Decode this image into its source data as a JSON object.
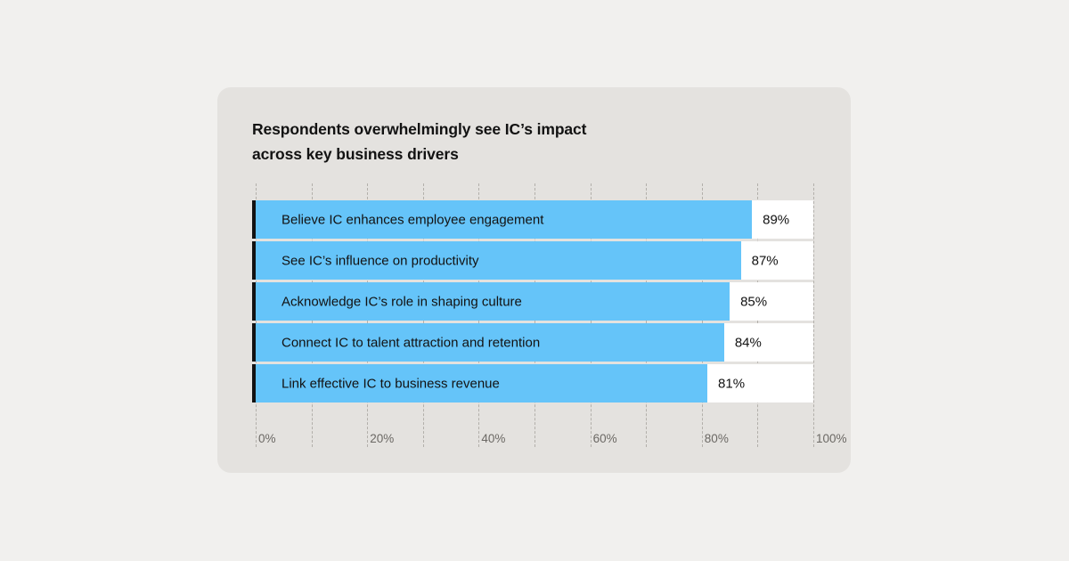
{
  "page": {
    "background_color": "#f1f0ee"
  },
  "card": {
    "background_color": "#e4e2df"
  },
  "title": {
    "line1": "Respondents overwhelmingly see IC’s impact",
    "line2": "across key business drivers"
  },
  "chart_data": {
    "type": "bar",
    "orientation": "horizontal",
    "title": "Respondents overwhelmingly see IC’s impact across key business drivers",
    "categories": [
      "Believe IC enhances employee engagement",
      "See IC’s influence on productivity",
      "Acknowledge IC’s role in shaping culture",
      "Connect IC to talent attraction and retention",
      "Link effective IC to business revenue"
    ],
    "values": [
      89,
      87,
      85,
      84,
      81
    ],
    "value_labels": [
      "89%",
      "87%",
      "85%",
      "84%",
      "81%"
    ],
    "xlabel": "",
    "ylabel": "",
    "xlim": [
      0,
      100
    ],
    "x_tick_labels": [
      "0%",
      "20%",
      "40%",
      "60%",
      "80%",
      "100%"
    ],
    "x_tick_values": [
      0,
      20,
      40,
      60,
      80,
      100
    ],
    "gridline_step_pct": 10,
    "grid": "vertical dashed gridlines every 10%",
    "legend": "none",
    "bar_color": "#65c4f9",
    "track_color": "#ffffff",
    "bar_edge_color": "#121212",
    "gridline_color": "#b2afaa",
    "tick_text_color": "#6b6864",
    "label_text_color": "#121212"
  }
}
